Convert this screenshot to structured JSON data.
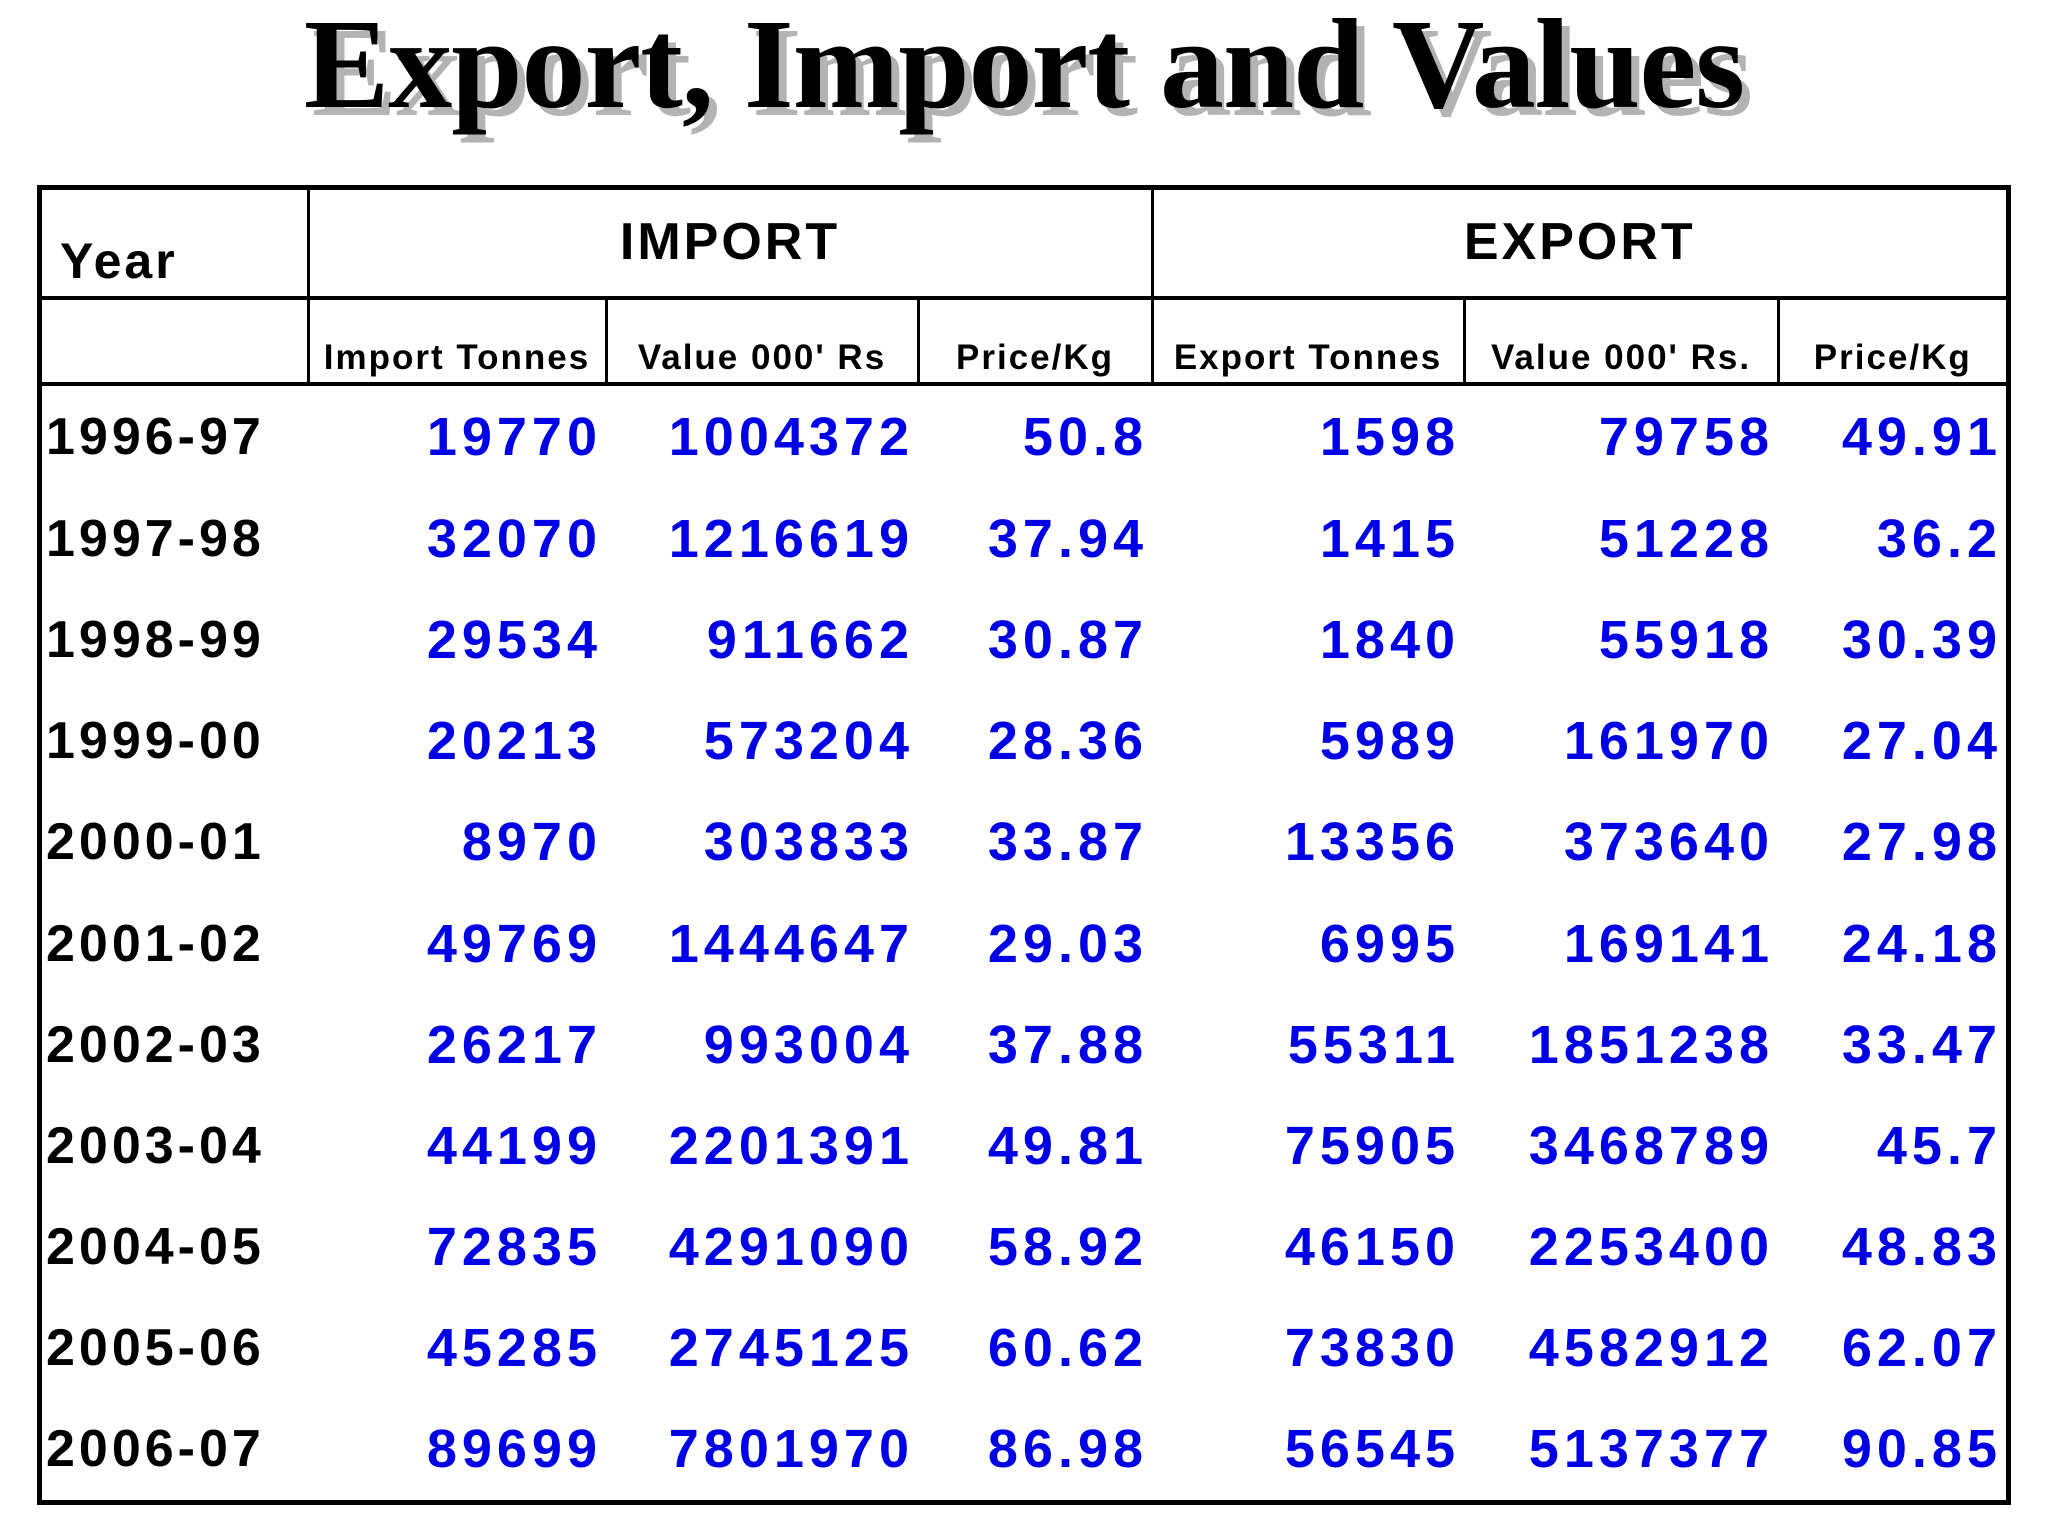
{
  "title": "Export, Import and Values",
  "table": {
    "year_header": "Year",
    "import_header": "IMPORT",
    "export_header": "EXPORT",
    "sub_headers": {
      "import_tonnes": "Import Tonnes",
      "import_value": "Value 000' Rs",
      "import_price": "Price/Kg",
      "export_tonnes": "Export Tonnes",
      "export_value": "Value 000' Rs.",
      "export_price": "Price/Kg"
    },
    "rows": [
      {
        "year": "1996-97",
        "import_tonnes": "19770",
        "import_value": "1004372",
        "import_price": "50.8",
        "export_tonnes": "1598",
        "export_value": "79758",
        "export_price": "49.91"
      },
      {
        "year": "1997-98",
        "import_tonnes": "32070",
        "import_value": "1216619",
        "import_price": "37.94",
        "export_tonnes": "1415",
        "export_value": "51228",
        "export_price": "36.2"
      },
      {
        "year": "1998-99",
        "import_tonnes": "29534",
        "import_value": "911662",
        "import_price": "30.87",
        "export_tonnes": "1840",
        "export_value": "55918",
        "export_price": "30.39"
      },
      {
        "year": "1999-00",
        "import_tonnes": "20213",
        "import_value": "573204",
        "import_price": "28.36",
        "export_tonnes": "5989",
        "export_value": "161970",
        "export_price": "27.04"
      },
      {
        "year": "2000-01",
        "import_tonnes": "8970",
        "import_value": "303833",
        "import_price": "33.87",
        "export_tonnes": "13356",
        "export_value": "373640",
        "export_price": "27.98"
      },
      {
        "year": "2001-02",
        "import_tonnes": "49769",
        "import_value": "1444647",
        "import_price": "29.03",
        "export_tonnes": "6995",
        "export_value": "169141",
        "export_price": "24.18"
      },
      {
        "year": "2002-03",
        "import_tonnes": "26217",
        "import_value": "993004",
        "import_price": "37.88",
        "export_tonnes": "55311",
        "export_value": "1851238",
        "export_price": "33.47"
      },
      {
        "year": "2003-04",
        "import_tonnes": "44199",
        "import_value": "2201391",
        "import_price": "49.81",
        "export_tonnes": "75905",
        "export_value": "3468789",
        "export_price": "45.7"
      },
      {
        "year": "2004-05",
        "import_tonnes": "72835",
        "import_value": "4291090",
        "import_price": "58.92",
        "export_tonnes": "46150",
        "export_value": "2253400",
        "export_price": "48.83"
      },
      {
        "year": "2005-06",
        "import_tonnes": "45285",
        "import_value": "2745125",
        "import_price": "60.62",
        "export_tonnes": "73830",
        "export_value": "4582912",
        "export_price": "62.07"
      },
      {
        "year": "2006-07",
        "import_tonnes": "89699",
        "import_value": "7801970",
        "import_price": "86.98",
        "export_tonnes": "56545",
        "export_value": "5137377",
        "export_price": "90.85"
      }
    ]
  },
  "colors": {
    "value_text": "#0000e6",
    "label_text": "#000000",
    "title_shadow": "#b3b3b3"
  }
}
